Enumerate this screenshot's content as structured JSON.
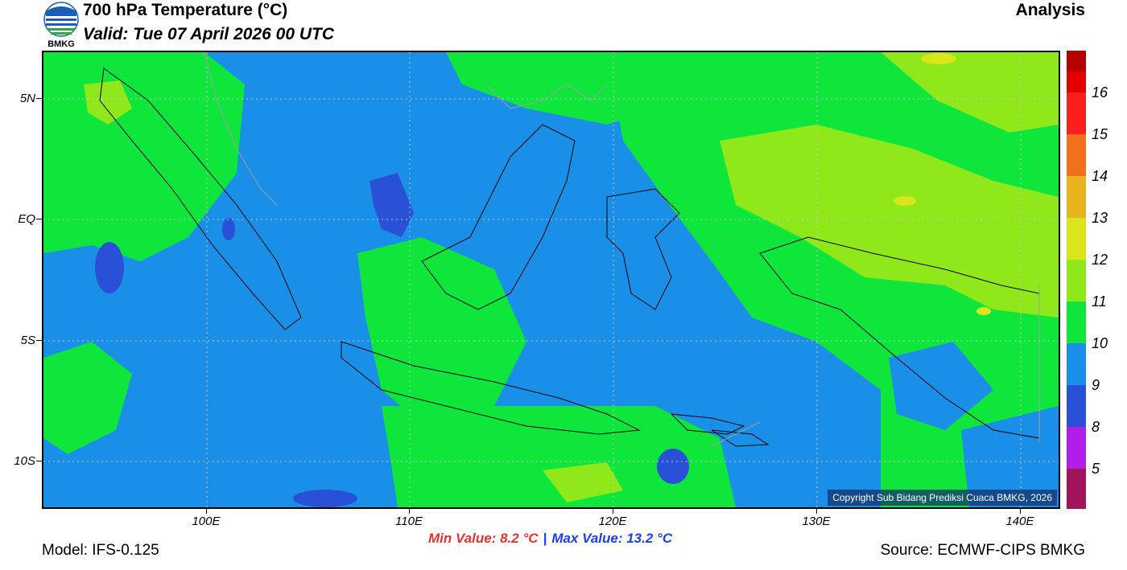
{
  "header": {
    "logo_text": "BMKG",
    "title": "700 hPa Temperature (°C)",
    "valid": "Valid: Tue 07 April 2026 00 UTC",
    "analysis": "Analysis"
  },
  "map": {
    "latitude_labels": [
      "5N",
      "EQ",
      "5S",
      "10S"
    ],
    "longitude_labels": [
      "100E",
      "110E",
      "120E",
      "130E",
      "140E"
    ],
    "copyright": "Copyright Sub Bidang Prediksi Cuaca BMKG, 2026"
  },
  "legend": {
    "labels": [
      "16",
      "15",
      "14",
      "13",
      "12",
      "11",
      "10",
      "9",
      "8",
      "5"
    ],
    "colors": [
      "#b40000",
      "#e40000",
      "#ff1e1e",
      "#f0701e",
      "#e8b41e",
      "#d8e61a",
      "#8ee81a",
      "#0ee63c",
      "#1a8fe8",
      "#2a50d8",
      "#b01ee8",
      "#a0145a"
    ]
  },
  "stats": {
    "min_label": "Min Value: 8.2",
    "max_label": "Max Value: 13.2",
    "unit": "°C",
    "separator": "|",
    "min_value": 8.2,
    "max_value": 13.2
  },
  "footer": {
    "model": "Model: IFS-0.125",
    "source": "Source: ECMWF-CIPS BMKG"
  }
}
